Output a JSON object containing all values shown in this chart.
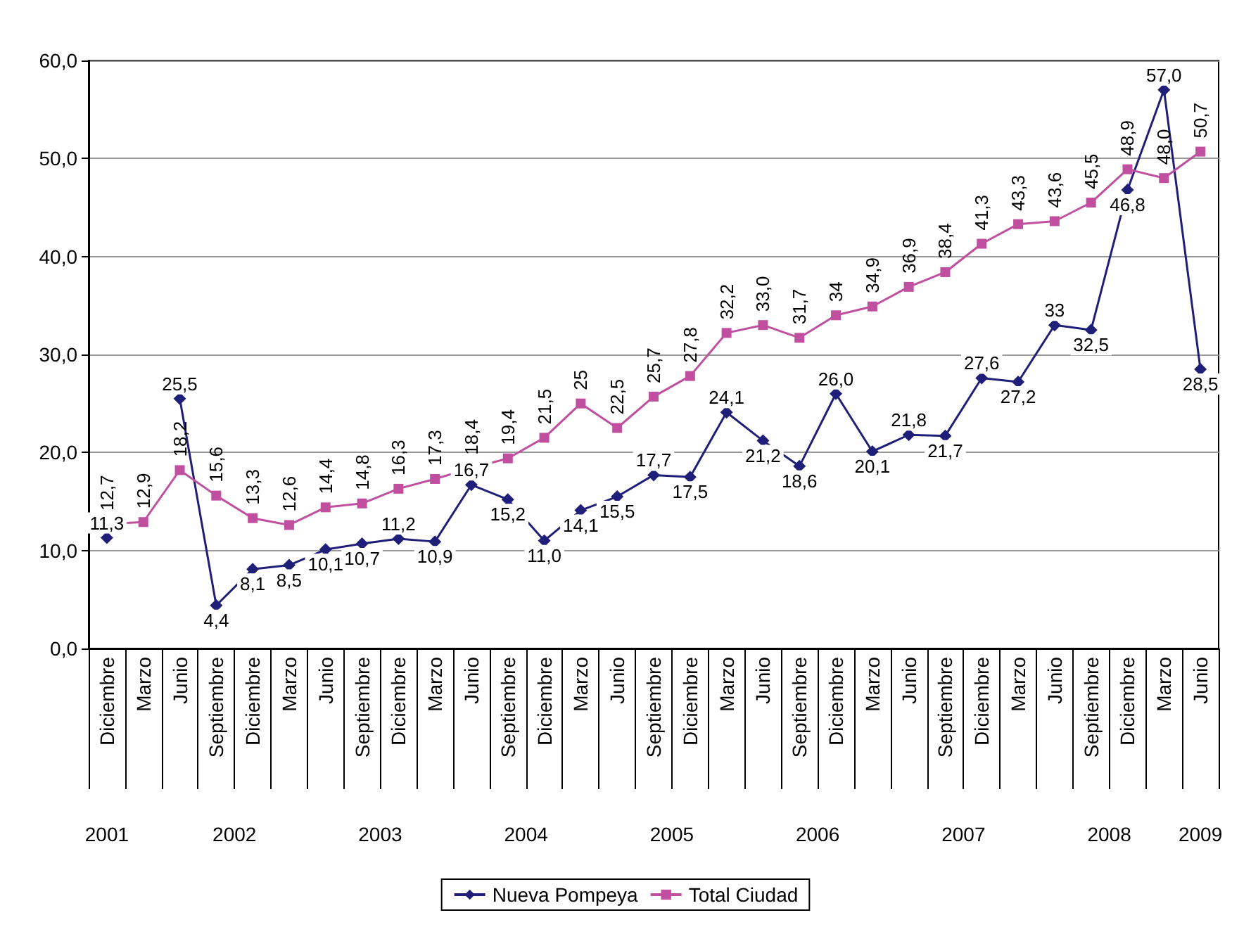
{
  "chart_data": {
    "type": "line",
    "categories": [
      "Diciembre",
      "Marzo",
      "Junio",
      "Septiembre",
      "Diciembre",
      "Marzo",
      "Junio",
      "Septiembre",
      "Diciembre",
      "Marzo",
      "Junio",
      "Septiembre",
      "Diciembre",
      "Marzo",
      "Junio",
      "Septiembre",
      "Diciembre",
      "Marzo",
      "Junio",
      "Septiembre",
      "Diciembre",
      "Marzo",
      "Junio",
      "Septiembre",
      "Diciembre",
      "Marzo",
      "Junio",
      "Septiembre",
      "Diciembre",
      "Marzo",
      "Junio"
    ],
    "series": [
      {
        "name": "Nueva Pompeya",
        "color": "#1f1f7a",
        "marker": "diamond",
        "values": [
          11.3,
          null,
          25.5,
          4.4,
          8.1,
          8.5,
          10.1,
          10.7,
          11.2,
          10.9,
          16.7,
          15.2,
          11.0,
          14.1,
          15.5,
          17.7,
          17.5,
          24.1,
          21.2,
          18.6,
          26.0,
          20.1,
          21.8,
          21.7,
          27.6,
          27.2,
          33,
          32.5,
          46.8,
          57.0,
          28.5
        ],
        "value_labels": [
          "11,3",
          null,
          "25,5",
          "4,4",
          "8,1",
          "8,5",
          "10,1",
          "10,7",
          "11,2",
          "10,9",
          "16,7",
          "15,2",
          "11,0",
          "14,1",
          "15,5",
          "17,7",
          "17,5",
          "24,1",
          "21,2",
          "18,6",
          "26,0",
          "20,1",
          "21,8",
          "21,7",
          "27,6",
          "27,2",
          "33",
          "32,5",
          "46,8",
          "57,0",
          "28,5"
        ]
      },
      {
        "name": "Total Ciudad",
        "color": "#c0509f",
        "marker": "square",
        "values": [
          12.7,
          12.9,
          18.2,
          15.6,
          13.3,
          12.6,
          14.4,
          14.8,
          16.3,
          17.3,
          18.4,
          19.4,
          21.5,
          25,
          22.5,
          25.7,
          27.8,
          32.2,
          33.0,
          31.7,
          34,
          34.9,
          36.9,
          38.4,
          41.3,
          43.3,
          43.6,
          45.5,
          48.9,
          48.0,
          50.7
        ],
        "value_labels": [
          "12,7",
          "12,9",
          "18,2",
          "15,6",
          "13,3",
          "12,6",
          "14,4",
          "14,8",
          "16,3",
          "17,3",
          "18,4",
          "19,4",
          "21,5",
          "25",
          "22,5",
          "25,7",
          "27,8",
          "32,2",
          "33,0",
          "31,7",
          "34",
          "34,9",
          "36,9",
          "38,4",
          "41,3",
          "43,3",
          "43,6",
          "45,5",
          "48,9",
          "48,0",
          "50,7"
        ]
      }
    ],
    "annotations": [
      "2001",
      "2002",
      "2003",
      "2004",
      "2005",
      "2006",
      "2007",
      "2008",
      "2009"
    ],
    "ylim": [
      0,
      60
    ],
    "yticks": [
      {
        "value": 0,
        "label": "0,0"
      },
      {
        "value": 10,
        "label": "10,0"
      },
      {
        "value": 20,
        "label": "20,0"
      },
      {
        "value": 30,
        "label": "30,0"
      },
      {
        "value": 40,
        "label": "40,0"
      },
      {
        "value": 50,
        "label": "50,0"
      },
      {
        "value": 60,
        "label": "60,0"
      }
    ],
    "grid": "y",
    "legend": "bottom"
  }
}
